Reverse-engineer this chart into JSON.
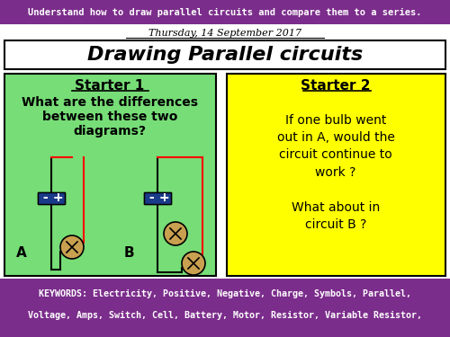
{
  "top_banner_color": "#7B2D8B",
  "top_banner_text": "Understand how to draw parallel circuits and compare them to a series.",
  "top_banner_text_color": "#FFFFFF",
  "date_text": "Thursday, 14 September 2017",
  "title_text": "Drawing Parallel circuits",
  "left_box_color": "#77DD77",
  "left_box_title": "Starter 1",
  "left_box_body": "What are the differences\nbetween these two\ndiagrams?",
  "left_label_A": "A",
  "left_label_B": "B",
  "right_box_color": "#FFFF00",
  "right_box_title": "Starter 2",
  "right_box_body": "If one bulb went\nout in A, would the\ncircuit continue to\nwork ?\n\nWhat about in\ncircuit B ?",
  "bottom_banner_color": "#7B2D8B",
  "bottom_banner_text1": "KEYWORDS: Electricity, Positive, Negative, Charge, Symbols, Parallel,",
  "bottom_banner_text2": "Voltage, Amps, Switch, Cell, Battery, Motor, Resistor, Variable Resistor,",
  "bottom_banner_text_color": "#FFFFFF",
  "bg_color": "#FFFFFF",
  "border_color": "#000000"
}
